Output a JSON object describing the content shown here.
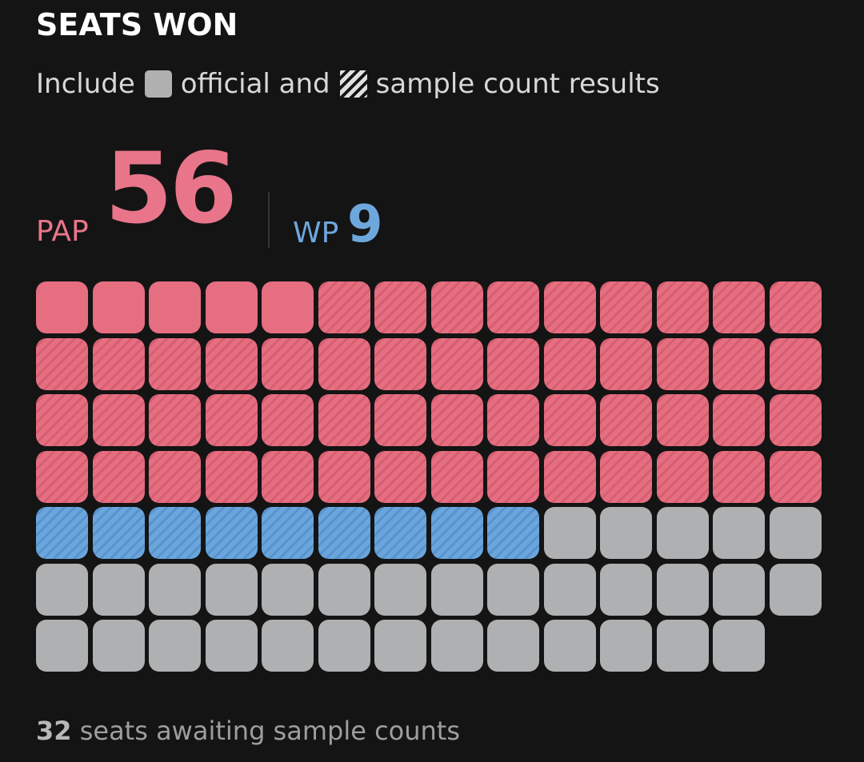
{
  "header": {
    "title": "SEATS WON"
  },
  "legend": {
    "prefix": "Include",
    "official_label": "official and",
    "sample_label": "sample count results",
    "official_swatch_icon": "official-square-icon",
    "sample_swatch_icon": "hatched-square-icon"
  },
  "score": {
    "party1": {
      "name": "PAP",
      "seats": "56",
      "color": "#e8758a"
    },
    "party2": {
      "name": "WP",
      "seats": "9",
      "color": "#6ea7dc"
    }
  },
  "seat_grid": {
    "total": 97,
    "columns": 14,
    "pap_official": 5,
    "pap_sample": 51,
    "wp_official": 0,
    "wp_sample": 9,
    "pending": 32,
    "colors": {
      "pap": "#e56e80",
      "wp": "#6aa6dd",
      "pending": "#aeb0b1"
    }
  },
  "footer": {
    "count": "32",
    "text": "seats awaiting sample counts"
  }
}
